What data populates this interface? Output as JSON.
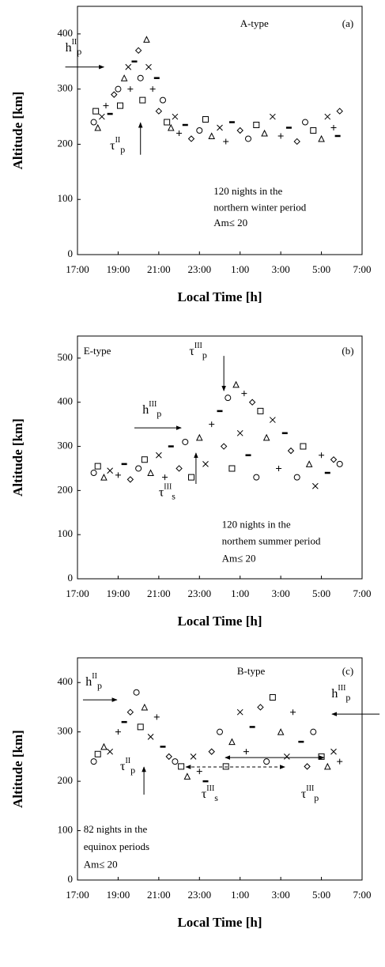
{
  "chart_data": [
    {
      "type": "scatter",
      "x_label": "Local Time [h]",
      "y_label": "Altitude  [km]",
      "xlim": [
        17,
        31
      ],
      "xticks": [
        {
          "value": 17,
          "label": "17:00"
        },
        {
          "value": 19,
          "label": "19:00"
        },
        {
          "value": 21,
          "label": "21:00"
        },
        {
          "value": 23,
          "label": "23:00"
        },
        {
          "value": 25,
          "label": "1:00"
        },
        {
          "value": 27,
          "label": "3:00"
        },
        {
          "value": 29,
          "label": "5:00"
        },
        {
          "value": 31,
          "label": "7:00"
        }
      ],
      "ylim": [
        0,
        450
      ],
      "yticks": [
        0,
        100,
        200,
        300,
        400
      ],
      "x": [
        17.8,
        17.9,
        18.0,
        18.2,
        18.4,
        18.6,
        18.8,
        19.0,
        19.1,
        19.3,
        19.5,
        19.6,
        19.8,
        20.0,
        20.1,
        20.2,
        20.4,
        20.5,
        20.7,
        20.9,
        21.0,
        21.2,
        21.4,
        21.6,
        21.8,
        22.0,
        22.3,
        22.6,
        23.0,
        23.3,
        23.6,
        24.0,
        24.3,
        24.6,
        25.0,
        25.4,
        25.8,
        26.2,
        26.6,
        27.0,
        27.4,
        27.8,
        28.2,
        28.6,
        29.0,
        29.3,
        29.6,
        29.8,
        29.9
      ],
      "values": [
        240,
        260,
        230,
        250,
        270,
        255,
        290,
        300,
        270,
        320,
        340,
        300,
        350,
        370,
        320,
        280,
        390,
        340,
        300,
        320,
        260,
        280,
        240,
        230,
        250,
        220,
        235,
        210,
        225,
        245,
        215,
        230,
        205,
        240,
        225,
        210,
        235,
        220,
        250,
        215,
        230,
        205,
        240,
        225,
        210,
        250,
        230,
        215,
        260
      ],
      "annotations": [
        {
          "text": "A-type"
        },
        {
          "text": "(a)"
        },
        {
          "text": "h",
          "sup": "II",
          "sub": "p"
        },
        {
          "text": "τ",
          "sup": "II",
          "sub": "p"
        },
        {
          "text": "120 nights in the"
        },
        {
          "text": "northern winter period"
        },
        {
          "text": "Am≤ 20"
        }
      ]
    },
    {
      "type": "scatter",
      "x_label": "Local Time [h]",
      "y_label": "Altitude  [km]",
      "xlim": [
        17,
        31
      ],
      "xticks": [
        {
          "value": 17,
          "label": "17:00"
        },
        {
          "value": 19,
          "label": "19:00"
        },
        {
          "value": 21,
          "label": "21:00"
        },
        {
          "value": 23,
          "label": "23:00"
        },
        {
          "value": 25,
          "label": "1:00"
        },
        {
          "value": 27,
          "label": "3:00"
        },
        {
          "value": 29,
          "label": "5:00"
        },
        {
          "value": 31,
          "label": "7:00"
        }
      ],
      "ylim": [
        0,
        550
      ],
      "yticks": [
        0,
        100,
        200,
        300,
        400,
        500
      ],
      "x": [
        17.8,
        18.0,
        18.3,
        18.6,
        19.0,
        19.3,
        19.6,
        20.0,
        20.3,
        20.6,
        21.0,
        21.3,
        21.6,
        22.0,
        22.3,
        22.6,
        23.0,
        23.3,
        23.6,
        24.0,
        24.2,
        24.4,
        24.6,
        24.8,
        25.0,
        25.2,
        25.4,
        25.6,
        25.8,
        26.0,
        26.3,
        26.6,
        26.9,
        27.2,
        27.5,
        27.8,
        28.1,
        28.4,
        28.7,
        29.0,
        29.3,
        29.6,
        29.9
      ],
      "values": [
        240,
        255,
        230,
        245,
        235,
        260,
        225,
        250,
        270,
        240,
        280,
        230,
        300,
        250,
        310,
        230,
        320,
        260,
        350,
        380,
        300,
        410,
        250,
        440,
        330,
        420,
        280,
        400,
        230,
        380,
        320,
        360,
        250,
        330,
        290,
        230,
        300,
        260,
        210,
        280,
        240,
        270,
        260
      ],
      "annotations": [
        {
          "text": "E-type"
        },
        {
          "text": "(b)"
        },
        {
          "text": "τ",
          "sup": "III",
          "sub": "p"
        },
        {
          "text": "h",
          "sup": "III",
          "sub": "p"
        },
        {
          "text": "τ",
          "sup": "III",
          "sub": "s"
        },
        {
          "text": "120 nights in the"
        },
        {
          "text": "northem summer period"
        },
        {
          "text": "Am≤ 20"
        }
      ]
    },
    {
      "type": "scatter",
      "x_label": "Local Time [h]",
      "y_label": "Altitude  [km]",
      "xlim": [
        17,
        31
      ],
      "xticks": [
        {
          "value": 17,
          "label": "17:00"
        },
        {
          "value": 19,
          "label": "19:00"
        },
        {
          "value": 21,
          "label": "21:00"
        },
        {
          "value": 23,
          "label": "23:00"
        },
        {
          "value": 25,
          "label": "1:00"
        },
        {
          "value": 27,
          "label": "3:00"
        },
        {
          "value": 29,
          "label": "5:00"
        },
        {
          "value": 31,
          "label": "7:00"
        }
      ],
      "ylim": [
        0,
        450
      ],
      "yticks": [
        0,
        100,
        200,
        300,
        400
      ],
      "x": [
        17.8,
        18.0,
        18.3,
        18.6,
        19.0,
        19.3,
        19.6,
        19.9,
        20.1,
        20.3,
        20.6,
        20.9,
        21.2,
        21.5,
        21.8,
        22.1,
        22.4,
        22.7,
        23.0,
        23.3,
        23.6,
        24.0,
        24.3,
        24.6,
        25.0,
        25.3,
        25.6,
        26.0,
        26.3,
        26.6,
        27.0,
        27.3,
        27.6,
        28.0,
        28.3,
        28.6,
        29.0,
        29.3,
        29.6,
        29.9
      ],
      "values": [
        240,
        255,
        270,
        260,
        300,
        320,
        340,
        380,
        310,
        350,
        290,
        330,
        270,
        250,
        240,
        230,
        210,
        250,
        220,
        200,
        260,
        300,
        230,
        280,
        340,
        260,
        310,
        350,
        240,
        370,
        300,
        250,
        340,
        280,
        230,
        300,
        250,
        230,
        260,
        240
      ],
      "annotations": [
        {
          "text": "B-type"
        },
        {
          "text": "(c)"
        },
        {
          "text": "h",
          "sup": "II",
          "sub": "p"
        },
        {
          "text": "h",
          "sup": "III",
          "sub": "p"
        },
        {
          "text": "τ",
          "sup": "II",
          "sub": "p"
        },
        {
          "text": "τ",
          "sup": "III",
          "sub": "s"
        },
        {
          "text": "τ",
          "sup": "III",
          "sub": "p"
        },
        {
          "text": "82 nights in the"
        },
        {
          "text": "equinox periods"
        },
        {
          "text": "Am≤ 20"
        }
      ]
    }
  ]
}
